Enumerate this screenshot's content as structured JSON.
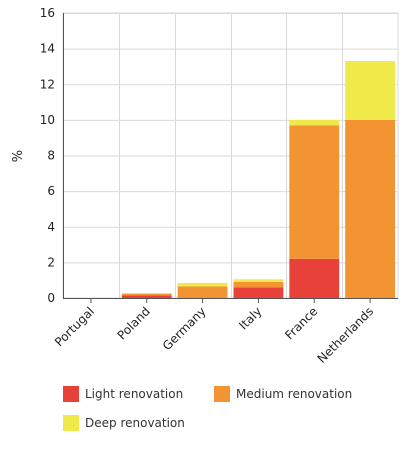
{
  "chart_data": {
    "type": "bar",
    "stacked": true,
    "categories": [
      "Portugal",
      "Poland",
      "Germany",
      "Italy",
      "France",
      "Netherlands"
    ],
    "series": [
      {
        "name": "Light renovation",
        "color": "#e8413a",
        "values": [
          0.0,
          0.15,
          0.0,
          0.6,
          2.2,
          0.0
        ]
      },
      {
        "name": "Medium renovation",
        "color": "#f39433",
        "values": [
          0.0,
          0.1,
          0.65,
          0.3,
          7.5,
          10.0
        ]
      },
      {
        "name": "Deep renovation",
        "color": "#f0e94a",
        "values": [
          0.0,
          0.0,
          0.2,
          0.15,
          0.3,
          3.3
        ]
      }
    ],
    "ylabel": "%",
    "xlabel": "",
    "ylim": [
      0,
      16
    ],
    "yticks": [
      0,
      2,
      4,
      6,
      8,
      10,
      12,
      14,
      16
    ],
    "grid": true,
    "legend_position": "bottom"
  }
}
